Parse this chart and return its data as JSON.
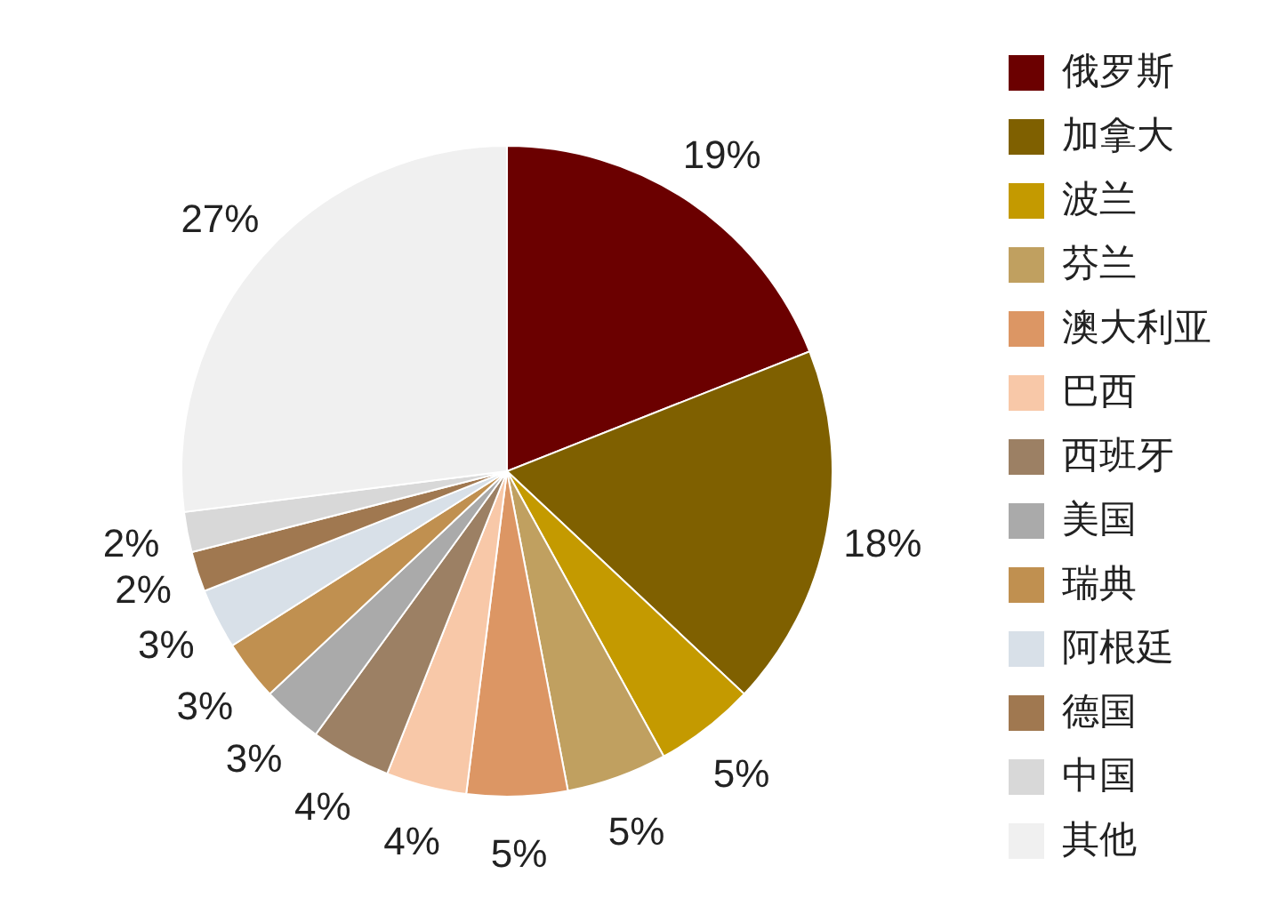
{
  "chart_data": {
    "type": "pie",
    "categories": [
      "俄罗斯",
      "加拿大",
      "波兰",
      "芬兰",
      "澳大利亚",
      "巴西",
      "西班牙",
      "美国",
      "瑞典",
      "阿根廷",
      "德国",
      "中国",
      "其他"
    ],
    "values": [
      19,
      18,
      5,
      5,
      5,
      4,
      4,
      3,
      3,
      3,
      2,
      2,
      27
    ],
    "colors": [
      "#6b0000",
      "#7f6000",
      "#c49a00",
      "#c0a060",
      "#dc9664",
      "#f8c8a8",
      "#9c8064",
      "#aaaaaa",
      "#c09050",
      "#d8e0e8",
      "#a07850",
      "#d8d8d8",
      "#f0f0f0"
    ],
    "value_labels": [
      "19%",
      "18%",
      "5%",
      "5%",
      "5%",
      "4%",
      "4%",
      "3%",
      "3%",
      "3%",
      "2%",
      "2%",
      "27%"
    ],
    "legend": "right"
  }
}
